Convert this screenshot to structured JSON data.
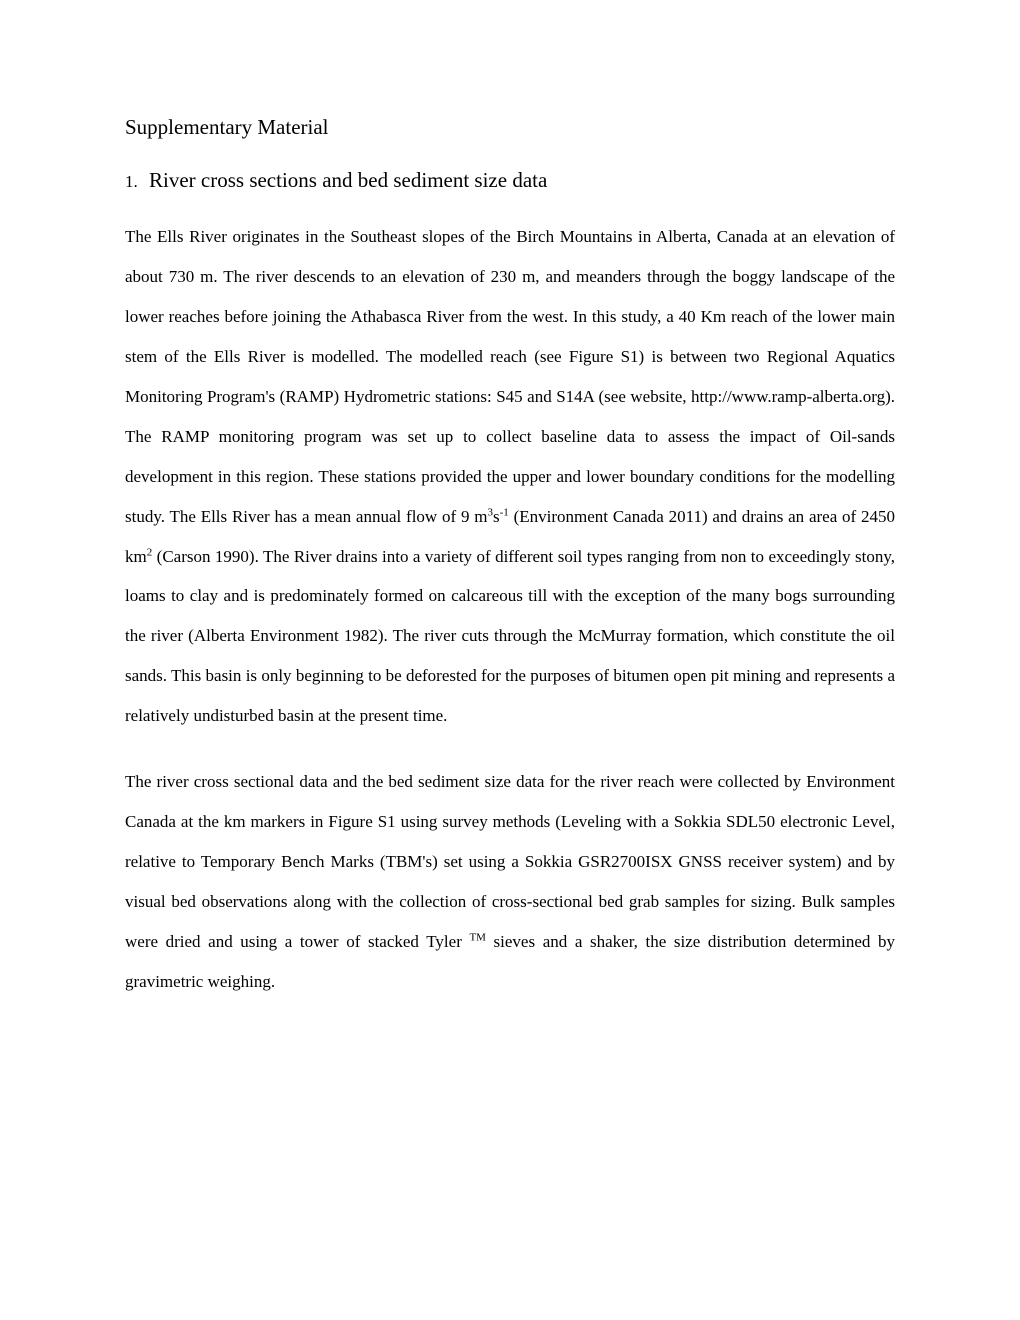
{
  "title": "Supplementary Material",
  "section": {
    "number": "1.",
    "heading": "River cross sections and bed sediment size data"
  },
  "paragraphs": {
    "p1": {
      "t1": "The Ells River originates in the Southeast slopes of the Birch Mountains in Alberta, Canada at an elevation of about 730 m. The river descends to an elevation of 230 m, and meanders through the boggy landscape of the lower reaches before joining the Athabasca River from the west. In this study, a 40 Km reach of the lower main stem of the Ells River is modelled.  The modelled reach (see Figure S1) is between two Regional Aquatics Monitoring Program's (RAMP) Hydrometric stations: S45 and S14A (see website, http://www.ramp-alberta.org). The RAMP monitoring program was set up to collect baseline data to assess the impact of Oil-sands development in this region. These stations provided the upper and lower boundary conditions for the modelling study. The Ells River has a mean annual flow of 9 m",
      "sup1": "3",
      "t2": "s",
      "sup2": "-1",
      "t3": " (Environment Canada 2011) and drains an area of 2450 km",
      "sup3": "2",
      "t4": " (Carson 1990). The River drains into a variety of different soil types ranging from non to exceedingly stony, loams to clay and is predominately formed on calcareous till with the exception of the many bogs surrounding the river (Alberta Environment 1982). The river cuts through the McMurray formation, which constitute the oil sands. This basin is only beginning to be deforested for the purposes of bitumen open pit mining and represents a relatively undisturbed basin at the present time."
    },
    "p2": {
      "t1": "The river cross sectional data and the bed sediment size data for the river reach were collected by Environment Canada at the km markers in Figure S1 using survey methods (Leveling with a Sokkia SDL50 electronic Level, relative to Temporary Bench Marks (TBM's) set using a Sokkia GSR2700ISX GNSS receiver system) and by visual bed observations along with the collection of cross-sectional bed grab samples for sizing. Bulk samples were dried and using a tower of stacked Tyler ",
      "sup1": "TM",
      "t2": " sieves and a shaker, the size distribution determined by gravimetric weighing."
    }
  },
  "colors": {
    "background": "#ffffff",
    "text": "#000000"
  },
  "typography": {
    "font_family": "Times New Roman",
    "title_fontsize": 21,
    "heading_fontsize": 21,
    "body_fontsize": 17,
    "line_height": 2.35,
    "text_align": "justify"
  }
}
